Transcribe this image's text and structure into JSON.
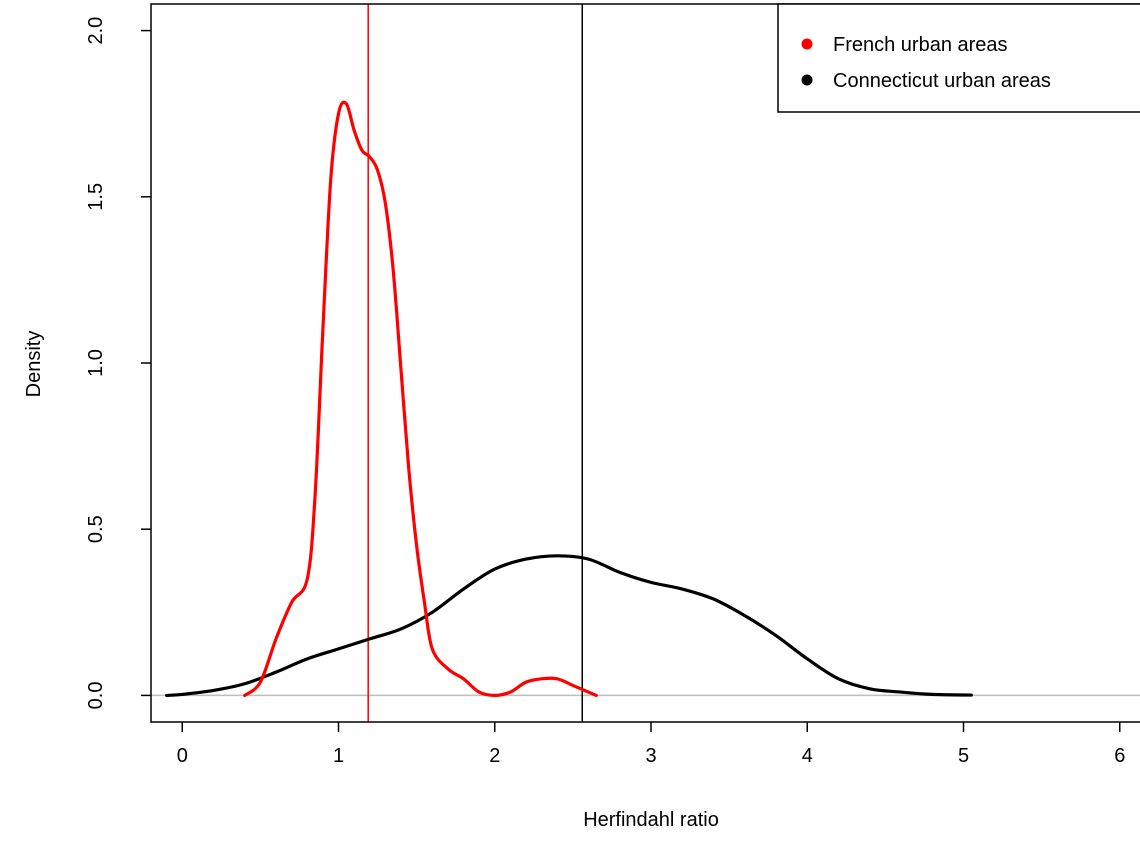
{
  "chart_data": {
    "type": "line",
    "title": "",
    "xlabel": "Herfindahl ratio",
    "ylabel": "Density",
    "xlim": [
      -0.2,
      6.2
    ],
    "ylim": [
      -0.08,
      2.08
    ],
    "x_ticks": [
      0,
      1,
      2,
      3,
      4,
      5,
      6
    ],
    "x_tick_labels": [
      "0",
      "1",
      "2",
      "3",
      "4",
      "5",
      "6"
    ],
    "y_ticks": [
      0.0,
      0.5,
      1.0,
      1.5,
      2.0
    ],
    "y_tick_labels": [
      "0.0",
      "0.5",
      "1.0",
      "1.5",
      "2.0"
    ],
    "grid": false,
    "legend_position": "top-right",
    "baseline": {
      "y": 0,
      "color": "#bebebe"
    },
    "series": [
      {
        "name": "French urban areas",
        "color": "#ff0000",
        "x": [
          0.4,
          0.5,
          0.6,
          0.7,
          0.8,
          0.85,
          0.9,
          0.95,
          1.0,
          1.05,
          1.1,
          1.15,
          1.2,
          1.25,
          1.3,
          1.35,
          1.4,
          1.45,
          1.5,
          1.55,
          1.6,
          1.7,
          1.8,
          1.9,
          2.0,
          2.1,
          2.2,
          2.3,
          2.4,
          2.5,
          2.6,
          2.65
        ],
        "y": [
          0.0,
          0.04,
          0.17,
          0.28,
          0.35,
          0.6,
          1.1,
          1.55,
          1.75,
          1.78,
          1.7,
          1.64,
          1.62,
          1.58,
          1.48,
          1.28,
          0.98,
          0.68,
          0.45,
          0.28,
          0.14,
          0.08,
          0.05,
          0.01,
          0.0,
          0.01,
          0.04,
          0.05,
          0.05,
          0.03,
          0.01,
          0.0
        ]
      },
      {
        "name": "Connecticut urban areas",
        "color": "#000000",
        "x": [
          -0.1,
          0.0,
          0.2,
          0.4,
          0.6,
          0.8,
          1.0,
          1.2,
          1.4,
          1.6,
          1.8,
          2.0,
          2.2,
          2.4,
          2.6,
          2.8,
          3.0,
          3.2,
          3.4,
          3.6,
          3.8,
          4.0,
          4.2,
          4.4,
          4.6,
          4.8,
          5.05
        ],
        "y": [
          0.0,
          0.003,
          0.015,
          0.035,
          0.07,
          0.11,
          0.14,
          0.17,
          0.2,
          0.25,
          0.32,
          0.38,
          0.41,
          0.42,
          0.41,
          0.37,
          0.34,
          0.32,
          0.29,
          0.24,
          0.18,
          0.11,
          0.05,
          0.02,
          0.01,
          0.003,
          0.001
        ]
      }
    ],
    "vlines": [
      {
        "x": 1.19,
        "color": "#ff0000"
      },
      {
        "x": 2.56,
        "color": "#000000"
      }
    ]
  }
}
